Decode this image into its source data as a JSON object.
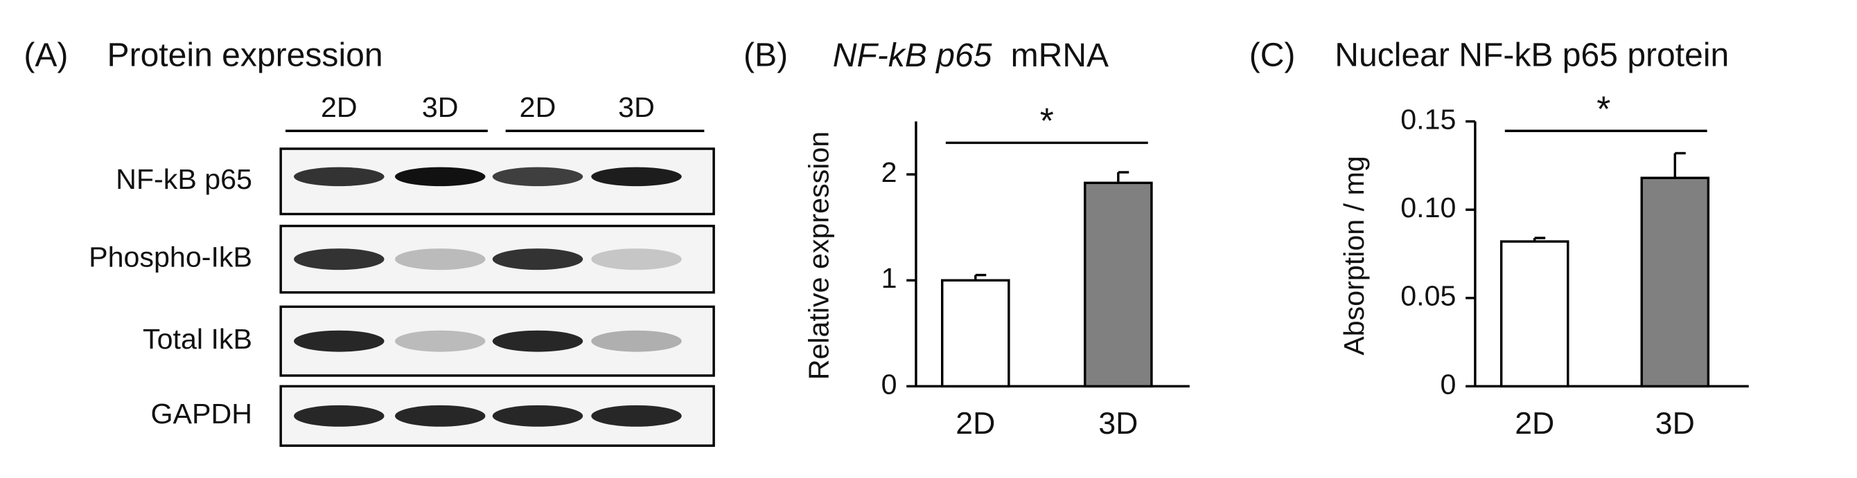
{
  "panel_a": {
    "panel": "(A)",
    "title": "Protein expression",
    "lanes": [
      "2D",
      "3D",
      "2D",
      "3D"
    ],
    "rows": [
      "NF-kB p65",
      "Phospho-IkB",
      "Total IkB",
      "GAPDH"
    ]
  },
  "chart_data": [
    {
      "type": "bar",
      "panel": "(B)",
      "title_italic": "NF-kB p65",
      "title": "mRNA",
      "ylabel": "Relative expression",
      "categories": [
        "2D",
        "3D"
      ],
      "values": [
        1.0,
        1.92
      ],
      "errors": [
        0.05,
        0.1
      ],
      "colors": [
        "#ffffff",
        "#808080"
      ],
      "ylim": [
        0,
        2.5
      ],
      "yticks": [
        0,
        1,
        2
      ],
      "annotation": "*"
    },
    {
      "type": "bar",
      "panel": "(C)",
      "title": "Nuclear NF-kB p65 protein",
      "ylabel": "Absorption / mg",
      "categories": [
        "2D",
        "3D"
      ],
      "values": [
        0.082,
        0.118
      ],
      "errors": [
        0.002,
        0.014
      ],
      "colors": [
        "#ffffff",
        "#808080"
      ],
      "ylim": [
        0,
        0.15
      ],
      "yticks": [
        0,
        0.05,
        {
          "value": 0.1,
          "label": "0.10"
        },
        0.15
      ],
      "annotation": "*"
    }
  ]
}
